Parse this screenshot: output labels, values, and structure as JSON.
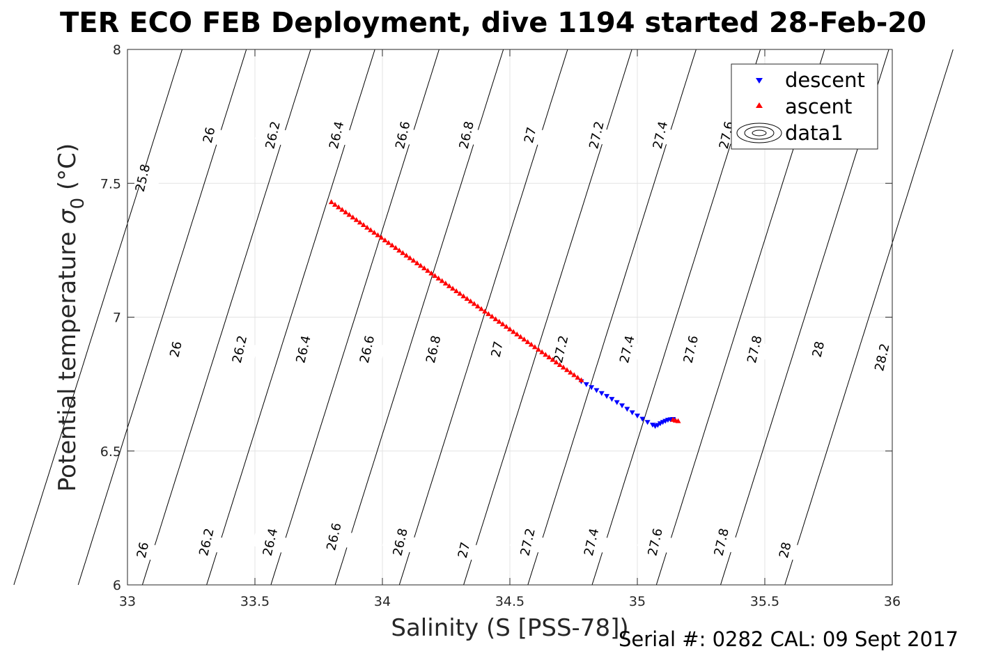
{
  "chart_data": {
    "type": "scatter",
    "title": "TER ECO FEB Deployment, dive 1194 started 28-Feb-20",
    "xlabel": "Salinity (S [PSS-78])",
    "ylabel_main": "Potential temperature ",
    "ylabel_symbol": "σ",
    "ylabel_subscript": "0",
    "ylabel_unit": " (°C)",
    "xlim": [
      33,
      36
    ],
    "ylim": [
      6,
      8
    ],
    "xticks": [
      "33",
      "33.5",
      "34",
      "34.5",
      "35",
      "35.5",
      "36"
    ],
    "yticks": [
      "6",
      "6.5",
      "7",
      "7.5",
      "8"
    ],
    "grid": true,
    "legend_position": "top-right",
    "legend": [
      "descent",
      "ascent",
      "data1"
    ],
    "footer": "Serial #: 0282  CAL: 09 Sept 2017",
    "series": [
      {
        "name": "descent",
        "color": "#0000ff",
        "marker": "triangle-down",
        "x": [
          34.78,
          34.8,
          34.82,
          34.84,
          34.86,
          34.88,
          34.9,
          34.92,
          34.94,
          34.96,
          34.98,
          35.0,
          35.02,
          35.04,
          35.06,
          35.07,
          35.08,
          35.09,
          35.1,
          35.11,
          35.12,
          35.13,
          35.14
        ],
        "y": [
          6.76,
          6.749,
          6.738,
          6.727,
          6.716,
          6.705,
          6.694,
          6.682,
          6.67,
          6.657,
          6.644,
          6.632,
          6.62,
          6.608,
          6.598,
          6.593,
          6.597,
          6.603,
          6.608,
          6.612,
          6.616,
          6.618,
          6.619
        ]
      },
      {
        "name": "ascent",
        "color": "#ff0000",
        "marker": "triangle-up",
        "x_start": 33.8,
        "y_start": 7.43,
        "x_end": 34.78,
        "y_end": 6.765,
        "count": 70,
        "extra_x": [
          35.14,
          35.15,
          35.16
        ],
        "extra_y": [
          6.617,
          6.614,
          6.612
        ]
      },
      {
        "name": "data1",
        "color": "#000000",
        "marker": "contour",
        "contour_levels": [
          25.8,
          26,
          26.2,
          26.4,
          26.6,
          26.8,
          27,
          27.2,
          27.4,
          27.6,
          27.8,
          28,
          28.2
        ],
        "labels": [
          {
            "text": "25.8",
            "s": 33.06,
            "t": 7.52
          },
          {
            "text": "26",
            "s": 33.32,
            "t": 7.68
          },
          {
            "text": "26.2",
            "s": 33.57,
            "t": 7.68
          },
          {
            "text": "26.4",
            "s": 33.82,
            "t": 7.68
          },
          {
            "text": "26.6",
            "s": 34.08,
            "t": 7.68
          },
          {
            "text": "26.8",
            "s": 34.33,
            "t": 7.68
          },
          {
            "text": "27",
            "s": 34.58,
            "t": 7.68
          },
          {
            "text": "27.2",
            "s": 34.84,
            "t": 7.68
          },
          {
            "text": "27.4",
            "s": 35.09,
            "t": 7.68
          },
          {
            "text": "27.6",
            "s": 35.35,
            "t": 7.68
          },
          {
            "text": "26",
            "s": 33.19,
            "t": 6.88
          },
          {
            "text": "26.2",
            "s": 33.44,
            "t": 6.88
          },
          {
            "text": "26.4",
            "s": 33.69,
            "t": 6.88
          },
          {
            "text": "26.6",
            "s": 33.94,
            "t": 6.88
          },
          {
            "text": "26.8",
            "s": 34.2,
            "t": 6.88
          },
          {
            "text": "27",
            "s": 34.45,
            "t": 6.88
          },
          {
            "text": "27.2",
            "s": 34.7,
            "t": 6.88
          },
          {
            "text": "27.4",
            "s": 34.96,
            "t": 6.88
          },
          {
            "text": "27.6",
            "s": 35.21,
            "t": 6.88
          },
          {
            "text": "27.8",
            "s": 35.46,
            "t": 6.88
          },
          {
            "text": "28",
            "s": 35.71,
            "t": 6.88
          },
          {
            "text": "28.2",
            "s": 35.96,
            "t": 6.85
          },
          {
            "text": "26",
            "s": 33.06,
            "t": 6.13
          },
          {
            "text": "26.2",
            "s": 33.31,
            "t": 6.16
          },
          {
            "text": "26.4",
            "s": 33.56,
            "t": 6.16
          },
          {
            "text": "26.6",
            "s": 33.81,
            "t": 6.18
          },
          {
            "text": "26.8",
            "s": 34.07,
            "t": 6.16
          },
          {
            "text": "27",
            "s": 34.32,
            "t": 6.13
          },
          {
            "text": "27.2",
            "s": 34.57,
            "t": 6.16
          },
          {
            "text": "27.4",
            "s": 34.82,
            "t": 6.16
          },
          {
            "text": "27.6",
            "s": 35.07,
            "t": 6.16
          },
          {
            "text": "27.8",
            "s": 35.33,
            "t": 6.16
          },
          {
            "text": "28",
            "s": 35.58,
            "t": 6.13
          }
        ]
      }
    ]
  }
}
